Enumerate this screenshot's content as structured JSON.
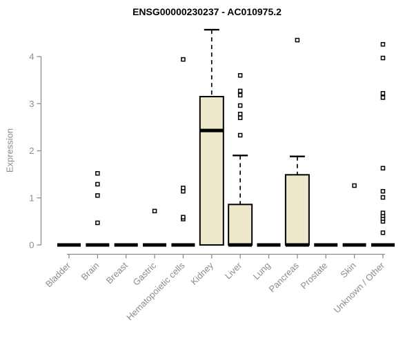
{
  "chart_data": {
    "type": "boxplot",
    "title": "ENSG00000230237 - AC010975.2",
    "ylabel": "Expression",
    "xlabel": "",
    "ylim": [
      0,
      4.6
    ],
    "yticks": [
      0,
      1,
      2,
      3,
      4
    ],
    "grid": false,
    "legend": "none",
    "box_fill": "#ede7cb",
    "box_stroke": "#000000",
    "axis_color": "#8c8c8c",
    "categories": [
      "Bladder",
      "Brain",
      "Breast",
      "Gastric",
      "Hematopoietic cells",
      "Kidney",
      "Liver",
      "Lung",
      "Pancreas",
      "Prostate",
      "Skin",
      "Unknown / Other"
    ],
    "series": [
      {
        "category": "Bladder",
        "q1": 0,
        "median": 0,
        "q3": 0,
        "whisker_low": 0,
        "whisker_high": 0,
        "outliers": []
      },
      {
        "category": "Brain",
        "q1": 0,
        "median": 0,
        "q3": 0,
        "whisker_low": 0,
        "whisker_high": 0,
        "outliers": [
          0.47,
          1.05,
          1.29,
          1.52
        ]
      },
      {
        "category": "Breast",
        "q1": 0,
        "median": 0,
        "q3": 0,
        "whisker_low": 0,
        "whisker_high": 0,
        "outliers": []
      },
      {
        "category": "Gastric",
        "q1": 0,
        "median": 0,
        "q3": 0,
        "whisker_low": 0,
        "whisker_high": 0,
        "outliers": [
          0.72
        ]
      },
      {
        "category": "Hematopoietic cells",
        "q1": 0,
        "median": 0,
        "q3": 0,
        "whisker_low": 0,
        "whisker_high": 0,
        "outliers": [
          0.55,
          0.59,
          1.14,
          1.21,
          3.94
        ]
      },
      {
        "category": "Kidney",
        "q1": 0,
        "median": 2.43,
        "q3": 3.15,
        "whisker_low": 0,
        "whisker_high": 4.57,
        "outliers": []
      },
      {
        "category": "Liver",
        "q1": 0,
        "median": 0,
        "q3": 0.86,
        "whisker_low": 0,
        "whisker_high": 1.9,
        "outliers": [
          2.33,
          2.7,
          2.78,
          2.96,
          3.18,
          3.27,
          3.6
        ]
      },
      {
        "category": "Lung",
        "q1": 0,
        "median": 0,
        "q3": 0,
        "whisker_low": 0,
        "whisker_high": 0,
        "outliers": []
      },
      {
        "category": "Pancreas",
        "q1": 0,
        "median": 0,
        "q3": 1.49,
        "whisker_low": 0,
        "whisker_high": 1.88,
        "outliers": [
          4.35
        ]
      },
      {
        "category": "Prostate",
        "q1": 0,
        "median": 0,
        "q3": 0,
        "whisker_low": 0,
        "whisker_high": 0,
        "outliers": []
      },
      {
        "category": "Skin",
        "q1": 0,
        "median": 0,
        "q3": 0,
        "whisker_low": 0,
        "whisker_high": 0,
        "outliers": [
          1.26
        ]
      },
      {
        "category": "Unknown / Other",
        "q1": 0,
        "median": 0,
        "q3": 0,
        "whisker_low": 0,
        "whisker_high": 0,
        "outliers": [
          0.26,
          0.5,
          0.56,
          0.62,
          0.68,
          1.01,
          1.14,
          1.63,
          3.13,
          3.22,
          3.97,
          4.26
        ]
      }
    ]
  }
}
